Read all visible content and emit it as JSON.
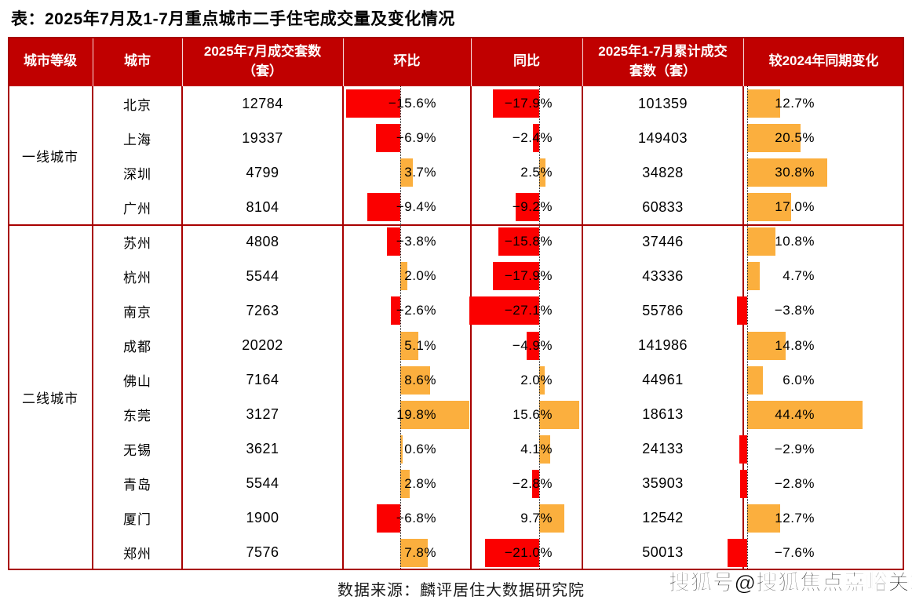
{
  "title": "表：2025年7月及1-7月重点城市二手住宅成交量及变化情况",
  "columns": [
    "城市等级",
    "城市",
    "2025年7月成交套数（套）",
    "环比",
    "同比",
    "2025年1-7月累计成交套数（套）",
    "较2024年同期变化"
  ],
  "tiers": [
    {
      "label": "一线城市",
      "rows": [
        {
          "city": "北京",
          "jul": "12784",
          "mom": -15.6,
          "mom_label": "−15.6%",
          "yoy": -17.9,
          "yoy_label": "−17.9%",
          "cum": "101359",
          "chg": 12.7,
          "chg_label": "12.7%"
        },
        {
          "city": "上海",
          "jul": "19337",
          "mom": -6.9,
          "mom_label": "−6.9%",
          "yoy": -2.4,
          "yoy_label": "−2.4%",
          "cum": "149403",
          "chg": 20.5,
          "chg_label": "20.5%"
        },
        {
          "city": "深圳",
          "jul": "4799",
          "mom": 3.7,
          "mom_label": "3.7%",
          "yoy": 2.5,
          "yoy_label": "2.5%",
          "cum": "34828",
          "chg": 30.8,
          "chg_label": "30.8%"
        },
        {
          "city": "广州",
          "jul": "8104",
          "mom": -9.4,
          "mom_label": "−9.4%",
          "yoy": -9.2,
          "yoy_label": "−9.2%",
          "cum": "60833",
          "chg": 17.0,
          "chg_label": "17.0%"
        }
      ]
    },
    {
      "label": "二线城市",
      "rows": [
        {
          "city": "苏州",
          "jul": "4808",
          "mom": -3.8,
          "mom_label": "−3.8%",
          "yoy": -15.8,
          "yoy_label": "−15.8%",
          "cum": "37446",
          "chg": 10.8,
          "chg_label": "10.8%"
        },
        {
          "city": "杭州",
          "jul": "5544",
          "mom": 2.0,
          "mom_label": "2.0%",
          "yoy": -17.9,
          "yoy_label": "−17.9%",
          "cum": "43336",
          "chg": 4.7,
          "chg_label": "4.7%"
        },
        {
          "city": "南京",
          "jul": "7263",
          "mom": -2.6,
          "mom_label": "−2.6%",
          "yoy": -27.1,
          "yoy_label": "−27.1%",
          "cum": "55786",
          "chg": -3.8,
          "chg_label": "−3.8%"
        },
        {
          "city": "成都",
          "jul": "20202",
          "mom": 5.1,
          "mom_label": "5.1%",
          "yoy": -4.9,
          "yoy_label": "−4.9%",
          "cum": "141986",
          "chg": 14.8,
          "chg_label": "14.8%"
        },
        {
          "city": "佛山",
          "jul": "7164",
          "mom": 8.6,
          "mom_label": "8.6%",
          "yoy": 2.0,
          "yoy_label": "2.0%",
          "cum": "44961",
          "chg": 6.0,
          "chg_label": "6.0%"
        },
        {
          "city": "东莞",
          "jul": "3127",
          "mom": 19.8,
          "mom_label": "19.8%",
          "yoy": 15.6,
          "yoy_label": "15.6%",
          "cum": "18613",
          "chg": 44.4,
          "chg_label": "44.4%"
        },
        {
          "city": "无锡",
          "jul": "3621",
          "mom": 0.6,
          "mom_label": "0.6%",
          "yoy": 4.1,
          "yoy_label": "4.1%",
          "cum": "24133",
          "chg": -2.9,
          "chg_label": "−2.9%"
        },
        {
          "city": "青岛",
          "jul": "5544",
          "mom": 2.8,
          "mom_label": "2.8%",
          "yoy": -2.8,
          "yoy_label": "−2.8%",
          "cum": "35903",
          "chg": -2.8,
          "chg_label": "−2.8%"
        },
        {
          "city": "厦门",
          "jul": "1900",
          "mom": -6.8,
          "mom_label": "−6.8%",
          "yoy": 9.7,
          "yoy_label": "9.7%",
          "cum": "12542",
          "chg": 12.7,
          "chg_label": "12.7%"
        },
        {
          "city": "郑州",
          "jul": "7576",
          "mom": 7.8,
          "mom_label": "7.8%",
          "yoy": -21.0,
          "yoy_label": "−21.0%",
          "cum": "50013",
          "chg": -7.6,
          "chg_label": "−7.6%"
        }
      ]
    }
  ],
  "footer": {
    "source": "数据来源：麟评居住大数据研究院",
    "watermark": "搜狐号@搜狐焦点嘉峪关站"
  },
  "colors": {
    "header_bg": "#C00000",
    "grid_line": "#A80000",
    "bar_negative": "#FB0000",
    "bar_positive": "#FBAF3E",
    "axis_dotted": "#1a1a1a"
  },
  "chart_data": {
    "type": "table",
    "title": "表：2025年7月及1-7月重点城市二手住宅成交量及变化情况",
    "columns": [
      "城市等级",
      "城市",
      "2025年7月成交套数（套）",
      "环比",
      "同比",
      "2025年1-7月累计成交套数（套）",
      "较2024年同期变化"
    ],
    "bar_columns": [
      "环比",
      "同比",
      "较2024年同期变化"
    ],
    "bar_colors": {
      "positive": "#FBAF3E",
      "negative": "#FB0000"
    },
    "rows": [
      [
        "一线城市",
        "北京",
        12784,
        -15.6,
        -17.9,
        101359,
        12.7
      ],
      [
        "一线城市",
        "上海",
        19337,
        -6.9,
        -2.4,
        149403,
        20.5
      ],
      [
        "一线城市",
        "深圳",
        4799,
        3.7,
        2.5,
        34828,
        30.8
      ],
      [
        "一线城市",
        "广州",
        8104,
        -9.4,
        -9.2,
        60833,
        17.0
      ],
      [
        "二线城市",
        "苏州",
        4808,
        -3.8,
        -15.8,
        37446,
        10.8
      ],
      [
        "二线城市",
        "杭州",
        5544,
        2.0,
        -17.9,
        43336,
        4.7
      ],
      [
        "二线城市",
        "南京",
        7263,
        -2.6,
        -27.1,
        55786,
        -3.8
      ],
      [
        "二线城市",
        "成都",
        20202,
        5.1,
        -4.9,
        141986,
        14.8
      ],
      [
        "二线城市",
        "佛山",
        7164,
        8.6,
        2.0,
        44961,
        6.0
      ],
      [
        "二线城市",
        "东莞",
        3127,
        19.8,
        15.6,
        18613,
        44.4
      ],
      [
        "二线城市",
        "无锡",
        3621,
        0.6,
        4.1,
        24133,
        -2.9
      ],
      [
        "二线城市",
        "青岛",
        5544,
        2.8,
        -2.8,
        35903,
        -2.8
      ],
      [
        "二线城市",
        "厦门",
        1900,
        -6.8,
        9.7,
        12542,
        12.7
      ],
      [
        "二线城市",
        "郑州",
        7576,
        7.8,
        -21.0,
        50013,
        -7.6
      ]
    ],
    "source_note": "数据来源：麟评居住大数据研究院"
  }
}
